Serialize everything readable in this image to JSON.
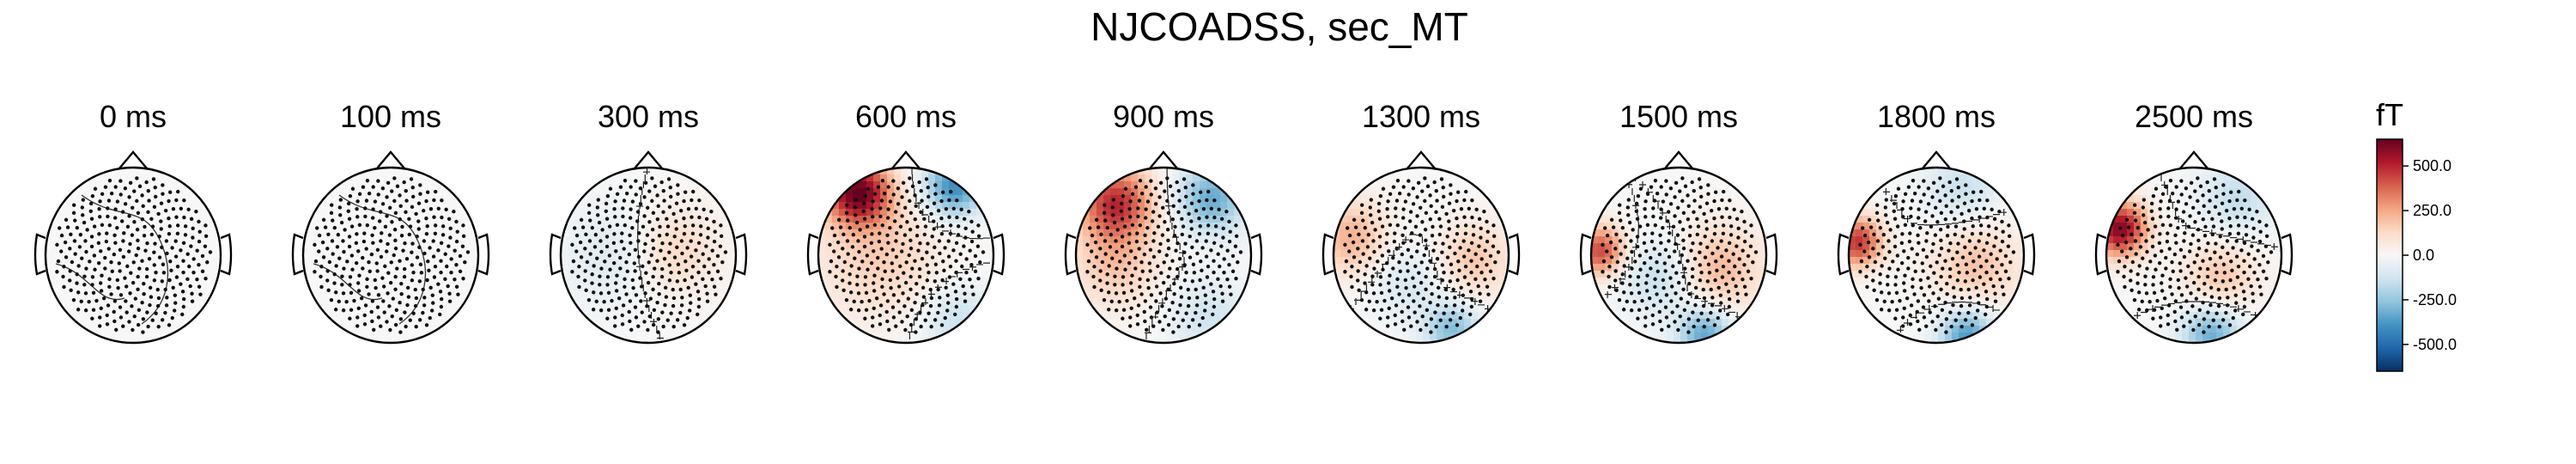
{
  "chart_data": {
    "type": "heatmap",
    "title": "NJCOADSS, sec_MT",
    "colormap": "RdBu_r",
    "colorbar": {
      "unit": "fT",
      "ticks": [
        500.0,
        250.0,
        0.0,
        -250.0,
        -500.0
      ],
      "tick_labels": [
        "500.0",
        "250.0",
        "0.0",
        "-250.0",
        "-500.0"
      ],
      "vmin": -650,
      "vmax": 650
    },
    "panels": [
      {
        "time_label": "0 ms",
        "time_ms": 0,
        "sources": []
      },
      {
        "time_label": "100 ms",
        "time_ms": 100,
        "sources": []
      },
      {
        "time_label": "300 ms",
        "time_ms": 300,
        "sources": [
          {
            "value": 140,
            "x": 0.3,
            "y": 0.05,
            "spread": 0.35
          },
          {
            "value": -90,
            "x": -0.4,
            "y": 0.0,
            "spread": 0.4
          }
        ]
      },
      {
        "time_label": "600 ms",
        "time_ms": 600,
        "sources": [
          {
            "value": 620,
            "x": -0.55,
            "y": 0.72,
            "spread": 0.26
          },
          {
            "value": -420,
            "x": 0.55,
            "y": 0.78,
            "spread": 0.24
          },
          {
            "value": 160,
            "x": -0.3,
            "y": 0.0,
            "spread": 0.5
          },
          {
            "value": -150,
            "x": 0.6,
            "y": -0.75,
            "spread": 0.3
          }
        ]
      },
      {
        "time_label": "900 ms",
        "time_ms": 900,
        "sources": [
          {
            "value": 480,
            "x": -0.55,
            "y": 0.6,
            "spread": 0.3
          },
          {
            "value": -330,
            "x": 0.55,
            "y": 0.65,
            "spread": 0.28
          },
          {
            "value": 180,
            "x": -0.55,
            "y": -0.1,
            "spread": 0.35
          },
          {
            "value": -130,
            "x": 0.5,
            "y": -0.7,
            "spread": 0.3
          }
        ]
      },
      {
        "time_label": "1300 ms",
        "time_ms": 1300,
        "sources": [
          {
            "value": 230,
            "x": -0.8,
            "y": 0.2,
            "spread": 0.3
          },
          {
            "value": -280,
            "x": 0.35,
            "y": -0.85,
            "spread": 0.22
          },
          {
            "value": 180,
            "x": 0.6,
            "y": -0.05,
            "spread": 0.3
          },
          {
            "value": -110,
            "x": -0.15,
            "y": -0.3,
            "spread": 0.3
          }
        ]
      },
      {
        "time_label": "1500 ms",
        "time_ms": 1500,
        "sources": [
          {
            "value": 430,
            "x": -0.9,
            "y": 0.05,
            "spread": 0.2
          },
          {
            "value": -350,
            "x": 0.3,
            "y": -0.9,
            "spread": 0.22
          },
          {
            "value": 220,
            "x": 0.45,
            "y": -0.15,
            "spread": 0.35
          },
          {
            "value": -170,
            "x": -0.2,
            "y": -0.25,
            "spread": 0.3
          }
        ]
      },
      {
        "time_label": "1800 ms",
        "time_ms": 1800,
        "sources": [
          {
            "value": 470,
            "x": -0.9,
            "y": 0.15,
            "spread": 0.2
          },
          {
            "value": -380,
            "x": 0.35,
            "y": -0.92,
            "spread": 0.22
          },
          {
            "value": 190,
            "x": 0.45,
            "y": -0.1,
            "spread": 0.35
          },
          {
            "value": -150,
            "x": 0.3,
            "y": 0.75,
            "spread": 0.3
          }
        ]
      },
      {
        "time_label": "2500 ms",
        "time_ms": 2500,
        "sources": [
          {
            "value": 600,
            "x": -0.85,
            "y": 0.3,
            "spread": 0.22
          },
          {
            "value": -330,
            "x": 0.2,
            "y": -0.9,
            "spread": 0.24
          },
          {
            "value": 180,
            "x": 0.3,
            "y": -0.25,
            "spread": 0.3
          },
          {
            "value": -160,
            "x": 0.5,
            "y": 0.65,
            "spread": 0.3
          }
        ]
      }
    ]
  }
}
